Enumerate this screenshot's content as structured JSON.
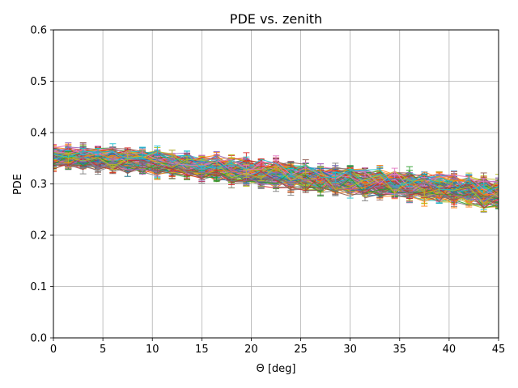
{
  "chart_data": {
    "type": "line",
    "title": "PDE vs. zenith",
    "xlabel": "Θ [deg]",
    "ylabel": "PDE",
    "xlim": [
      0,
      45
    ],
    "ylim": [
      0,
      0.6
    ],
    "x_ticks": [
      0,
      5,
      10,
      15,
      20,
      25,
      30,
      35,
      40,
      45
    ],
    "y_ticks": [
      0.0,
      0.1,
      0.2,
      0.3,
      0.4,
      0.5,
      0.6
    ],
    "x_tick_labels": [
      "0",
      "5",
      "10",
      "15",
      "20",
      "25",
      "30",
      "35",
      "40",
      "45"
    ],
    "y_tick_labels": [
      "0.0",
      "0.1",
      "0.2",
      "0.3",
      "0.4",
      "0.5",
      "0.6"
    ],
    "grid": true,
    "legend": "none",
    "error_bars": true,
    "series_colors": [
      "#1f77b4",
      "#ff7f0e",
      "#2ca02c",
      "#d62728",
      "#9467bd",
      "#8c564b",
      "#e377c2",
      "#7f7f7f",
      "#bcbd22",
      "#17becf"
    ],
    "x": [
      0,
      1.5,
      3,
      4.5,
      6,
      7.5,
      9,
      10.5,
      12,
      13.5,
      15,
      16.5,
      18,
      19.5,
      21,
      22.5,
      24,
      25.5,
      27,
      28.5,
      30,
      31.5,
      33,
      34.5,
      36,
      37.5,
      39,
      40.5,
      42,
      43.5,
      45
    ],
    "trend": [
      0.352,
      0.352,
      0.351,
      0.349,
      0.347,
      0.345,
      0.343,
      0.341,
      0.339,
      0.336,
      0.333,
      0.331,
      0.328,
      0.325,
      0.322,
      0.319,
      0.316,
      0.313,
      0.31,
      0.308,
      0.305,
      0.302,
      0.3,
      0.298,
      0.296,
      0.294,
      0.292,
      0.29,
      0.287,
      0.283,
      0.278
    ],
    "n_series": 120,
    "spread": 0.012
  }
}
